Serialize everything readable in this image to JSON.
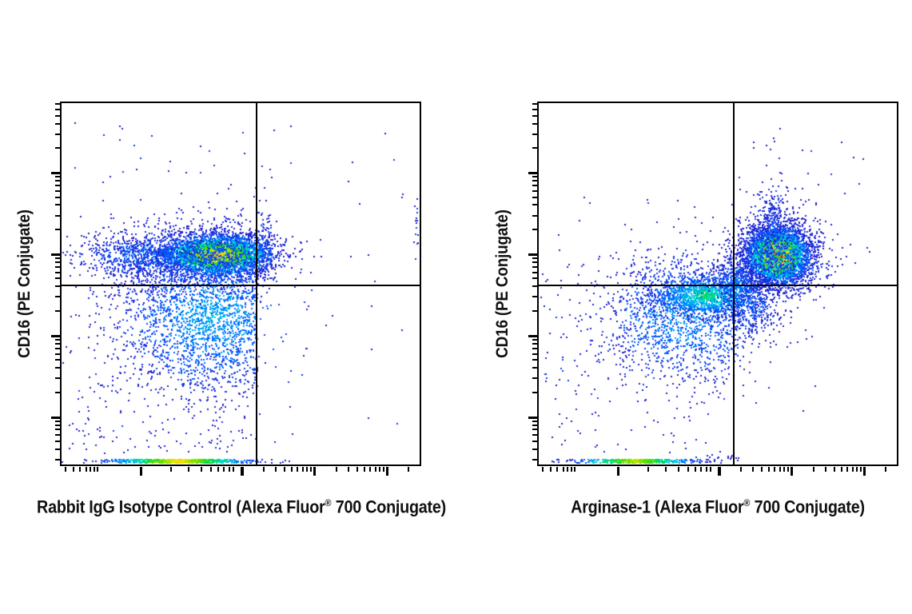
{
  "figure": {
    "background": "#ffffff",
    "frame_color": "#000000",
    "text_color": "#111111",
    "description": "Two-panel flow cytometry density dot plots with quadrant gates"
  },
  "chart_data": {
    "type": "scatter",
    "subtype": "flow-cytometry-density-dot-plot",
    "grid": false,
    "legend": false,
    "axis_scale_note": "biexponential log-like axes, tick marks unlabeled",
    "density_palette": [
      "#2222cc",
      "#1b3fe8",
      "#0066ff",
      "#00a2f5",
      "#00d9d0",
      "#00d957",
      "#55e000",
      "#aae600",
      "#efe000",
      "#ffa500",
      "#f23000"
    ],
    "axes": {
      "x_major": [
        0.225,
        0.508,
        0.711,
        0.914
      ],
      "x_minor": [
        0.015,
        0.037,
        0.057,
        0.073,
        0.086,
        0.097,
        0.106,
        0.31,
        0.36,
        0.395,
        0.422,
        0.442,
        0.459,
        0.475,
        0.486,
        0.57,
        0.605,
        0.629,
        0.649,
        0.665,
        0.68,
        0.691,
        0.702,
        0.773,
        0.808,
        0.832,
        0.852,
        0.868,
        0.883,
        0.894,
        0.905,
        0.976
      ],
      "y_major": [
        0.197,
        0.423,
        0.649,
        0.875
      ],
      "y_minor": [
        0.007,
        0.022,
        0.04,
        0.061,
        0.09,
        0.129,
        0.208,
        0.22,
        0.233,
        0.248,
        0.265,
        0.287,
        0.316,
        0.355,
        0.434,
        0.446,
        0.459,
        0.474,
        0.491,
        0.513,
        0.542,
        0.581,
        0.66,
        0.672,
        0.685,
        0.7,
        0.717,
        0.739,
        0.767,
        0.807,
        0.886,
        0.897,
        0.91,
        0.925,
        0.943,
        0.965,
        0.993
      ]
    },
    "quadrant_gate": {
      "x_fraction": 0.545,
      "y_fraction": 0.505,
      "line_color": "#000000"
    },
    "panels": [
      {
        "id": "isotype-control",
        "ylabel": "CD16 (PE Conjugate)",
        "xlabel": "Rabbit IgG Isotype Control (Alexa Fluor® 700 Conjugate)",
        "xlabel_parts": [
          "Rabbit IgG Isotype Control (Alexa Fluor",
          "®",
          " 700 Conjugate)"
        ],
        "clusters": [
          {
            "name": "cd16pos-main-core",
            "type": "gauss",
            "cx": 0.435,
            "cy": 0.422,
            "sx": 0.075,
            "sy": 0.027,
            "n": 3200,
            "intensity": 0.86,
            "seed": 11
          },
          {
            "name": "cd16pos-main-halo",
            "type": "gauss",
            "cx": 0.405,
            "cy": 0.424,
            "sx": 0.135,
            "sy": 0.045,
            "n": 1500,
            "intensity": 0.28,
            "seed": 12,
            "clip_x": 0.548,
            "keep": 0.18
          },
          {
            "name": "cd16pos-left-tail",
            "type": "gauss",
            "cx": 0.22,
            "cy": 0.425,
            "sx": 0.1,
            "sy": 0.032,
            "n": 650,
            "intensity": 0.22,
            "seed": 13
          },
          {
            "name": "ll-cloud",
            "type": "gauss",
            "cx": 0.42,
            "cy": 0.6,
            "sx": 0.135,
            "sy": 0.105,
            "n": 2500,
            "intensity": 0.34,
            "seed": 14,
            "clip_x": 0.548,
            "keep": 0.08
          },
          {
            "name": "ll-deep-sparse",
            "type": "uniform",
            "x0": 0.02,
            "x1": 0.53,
            "y0": 0.68,
            "y1": 0.97,
            "n": 130,
            "intensity": 0.06,
            "seed": 15
          },
          {
            "name": "ur-gateline-cluster",
            "type": "gauss",
            "cx": 0.565,
            "cy": 0.4,
            "sx": 0.015,
            "sy": 0.055,
            "n": 160,
            "intensity": 0.17,
            "seed": 16
          },
          {
            "name": "ur-right-edge",
            "type": "gauss",
            "cx": 0.994,
            "cy": 0.35,
            "sx": 0.005,
            "sy": 0.06,
            "n": 22,
            "intensity": 0.14,
            "seed": 17
          },
          {
            "name": "ul-sparse",
            "type": "uniform",
            "x0": 0.01,
            "x1": 0.54,
            "y0": 0.04,
            "y1": 0.42,
            "n": 40,
            "intensity": 0.06,
            "seed": 18
          },
          {
            "name": "ur-sparse",
            "type": "uniform",
            "x0": 0.56,
            "x1": 0.98,
            "y0": 0.03,
            "y1": 0.5,
            "n": 16,
            "intensity": 0.06,
            "seed": 19
          },
          {
            "name": "lr-sparse",
            "type": "uniform",
            "x0": 0.56,
            "x1": 0.97,
            "y0": 0.53,
            "y1": 0.93,
            "n": 9,
            "intensity": 0.06,
            "seed": 20
          },
          {
            "name": "zero-axis-strip",
            "type": "strip",
            "cx": 0.33,
            "sx": 0.1,
            "n": 650,
            "intensity": 0.78,
            "seed": 21
          },
          {
            "name": "above-strip-sparse",
            "type": "uniform",
            "x0": 0.04,
            "x1": 0.6,
            "y0": 0.9,
            "y1": 0.975,
            "n": 35,
            "intensity": 0.06,
            "seed": 22
          }
        ]
      },
      {
        "id": "arginase-1",
        "ylabel": "CD16 (PE Conjugate)",
        "xlabel": "Arginase-1 (Alexa Fluor® 700 Conjugate)",
        "xlabel_parts": [
          "Arginase-1 (Alexa Fluor",
          "®",
          " 700 Conjugate)"
        ],
        "clusters": [
          {
            "name": "arg1pos-nk-core",
            "type": "gauss",
            "cx": 0.669,
            "cy": 0.423,
            "sx": 0.042,
            "sy": 0.037,
            "n": 3400,
            "intensity": 1.05,
            "seed": 31
          },
          {
            "name": "arg1pos-nk-ring",
            "type": "gauss",
            "cx": 0.669,
            "cy": 0.424,
            "sx": 0.055,
            "sy": 0.048,
            "n": 800,
            "intensity": 0.5,
            "seed": 45
          },
          {
            "name": "arg1pos-nk-halo",
            "type": "gauss",
            "cx": 0.669,
            "cy": 0.425,
            "sx": 0.075,
            "sy": 0.065,
            "n": 800,
            "intensity": 0.2,
            "seed": 32
          },
          {
            "name": "nk-tail-up",
            "type": "gauss",
            "cx": 0.655,
            "cy": 0.335,
            "sx": 0.022,
            "sy": 0.05,
            "n": 240,
            "intensity": 0.17,
            "seed": 33
          },
          {
            "name": "nk-top-sparse",
            "type": "uniform",
            "x0": 0.6,
            "x1": 0.76,
            "y0": 0.08,
            "y1": 0.28,
            "n": 20,
            "intensity": 0.06,
            "seed": 34
          },
          {
            "name": "ll-cloud",
            "type": "gauss",
            "cx": 0.4,
            "cy": 0.595,
            "sx": 0.115,
            "sy": 0.092,
            "n": 1500,
            "intensity": 0.32,
            "seed": 35
          },
          {
            "name": "ll-band",
            "type": "gauss",
            "cx": 0.47,
            "cy": 0.535,
            "sx": 0.078,
            "sy": 0.03,
            "n": 1300,
            "intensity": 0.5,
            "seed": 36
          },
          {
            "name": "cross-bridge",
            "type": "gauss",
            "cx": 0.555,
            "cy": 0.5,
            "sx": 0.035,
            "sy": 0.038,
            "n": 350,
            "intensity": 0.28,
            "seed": 37
          },
          {
            "name": "lr-spill",
            "type": "gauss",
            "cx": 0.6,
            "cy": 0.555,
            "sx": 0.035,
            "sy": 0.05,
            "n": 260,
            "intensity": 0.24,
            "seed": 38
          },
          {
            "name": "ll-deep-sparse",
            "type": "uniform",
            "x0": 0.02,
            "x1": 0.52,
            "y0": 0.68,
            "y1": 0.97,
            "n": 80,
            "intensity": 0.06,
            "seed": 39
          },
          {
            "name": "far-left-sparse",
            "type": "uniform",
            "x0": 0.01,
            "x1": 0.26,
            "y0": 0.45,
            "y1": 0.78,
            "n": 55,
            "intensity": 0.06,
            "seed": 40
          },
          {
            "name": "ul-sparse",
            "type": "uniform",
            "x0": 0.04,
            "x1": 0.53,
            "y0": 0.22,
            "y1": 0.44,
            "n": 16,
            "intensity": 0.06,
            "seed": 41
          },
          {
            "name": "ur-sparse",
            "type": "uniform",
            "x0": 0.56,
            "x1": 0.99,
            "y0": 0.05,
            "y1": 0.38,
            "n": 12,
            "intensity": 0.06,
            "seed": 42
          },
          {
            "name": "zero-axis-strip",
            "type": "strip",
            "cx": 0.27,
            "sx": 0.085,
            "n": 420,
            "intensity": 0.7,
            "seed": 43
          },
          {
            "name": "strip-right-specks",
            "type": "uniform",
            "x0": 0.44,
            "x1": 0.56,
            "y0": 0.975,
            "y1": 0.995,
            "n": 18,
            "intensity": 0.06,
            "seed": 44
          }
        ]
      }
    ]
  }
}
